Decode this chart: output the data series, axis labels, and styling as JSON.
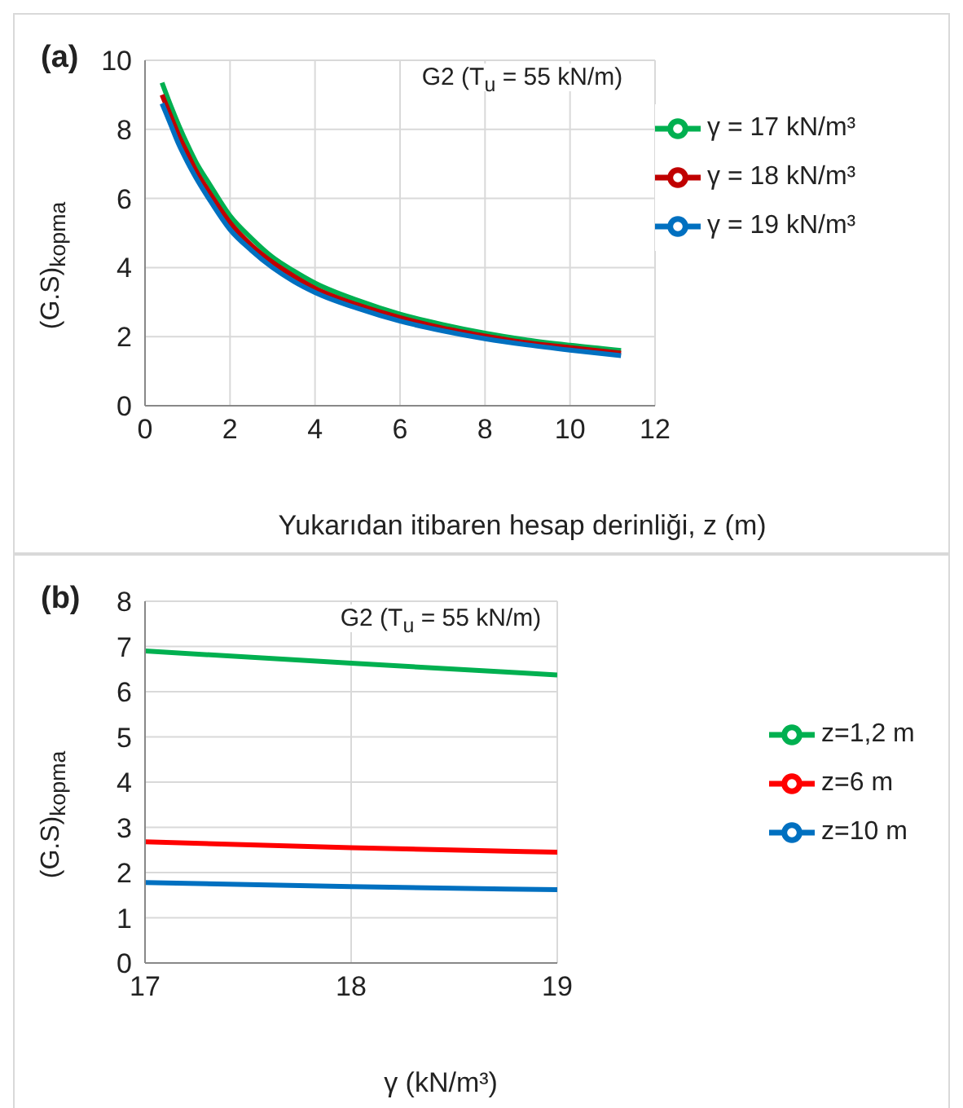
{
  "chart_data": [
    {
      "type": "line",
      "title": "G2 (T$_{u}$ = 55 kN/m)",
      "xlabel": "Yukarıdan itibaren hesap derinliği, z (m)",
      "ylabel": "(G.S)$_{kopma}$",
      "annotations": [
        "(a)"
      ],
      "x": [
        0.4,
        0.6,
        0.8,
        1,
        1.2,
        1.5,
        2,
        2.5,
        3,
        3.5,
        4,
        5,
        6,
        7,
        8,
        9,
        10,
        11.2
      ],
      "series": [
        {
          "name": "γ = 17 kN/m³",
          "color": "#00b050",
          "values": [
            9.35,
            8.7,
            8.1,
            7.55,
            7.05,
            6.45,
            5.5,
            4.85,
            4.3,
            3.9,
            3.55,
            3.05,
            2.65,
            2.35,
            2.1,
            1.9,
            1.75,
            1.6
          ]
        },
        {
          "name": "γ = 18 kN/m³",
          "color": "#c00000",
          "values": [
            9.0,
            8.4,
            7.8,
            7.3,
            6.8,
            6.2,
            5.3,
            4.65,
            4.15,
            3.75,
            3.4,
            2.92,
            2.55,
            2.25,
            2.02,
            1.82,
            1.68,
            1.52
          ]
        },
        {
          "name": "γ = 19 kN/m³",
          "color": "#0070c0",
          "values": [
            8.75,
            8.15,
            7.55,
            7.05,
            6.6,
            6.0,
            5.1,
            4.5,
            4.0,
            3.6,
            3.28,
            2.82,
            2.45,
            2.17,
            1.94,
            1.76,
            1.61,
            1.45
          ]
        }
      ],
      "xlim": [
        0,
        12
      ],
      "xticks": [
        0,
        2,
        4,
        6,
        8,
        10,
        12
      ],
      "ylim": [
        0,
        10
      ],
      "yticks": [
        0,
        2,
        4,
        6,
        8,
        10
      ],
      "grid": true,
      "legend": "top right"
    },
    {
      "type": "line",
      "title": "G2 (T$_{u}$ = 55 kN/m)",
      "xlabel": "γ  (kN/m³)",
      "ylabel": "(G.S)$_{kopma}$",
      "annotations": [
        "(b)"
      ],
      "x": [
        17,
        18,
        19
      ],
      "series": [
        {
          "name": "z=1,2 m",
          "color": "#00b050",
          "values": [
            6.9,
            6.63,
            6.37
          ]
        },
        {
          "name": "z=6 m",
          "color": "#ff0000",
          "values": [
            2.68,
            2.55,
            2.45
          ]
        },
        {
          "name": "z=10 m",
          "color": "#0070c0",
          "values": [
            1.78,
            1.69,
            1.62
          ]
        }
      ],
      "xlim": [
        17,
        19
      ],
      "xticks": [
        17,
        18,
        19
      ],
      "ylim": [
        0,
        8
      ],
      "yticks": [
        0,
        1,
        2,
        3,
        4,
        5,
        6,
        7,
        8
      ],
      "grid": true,
      "legend": "right"
    }
  ]
}
